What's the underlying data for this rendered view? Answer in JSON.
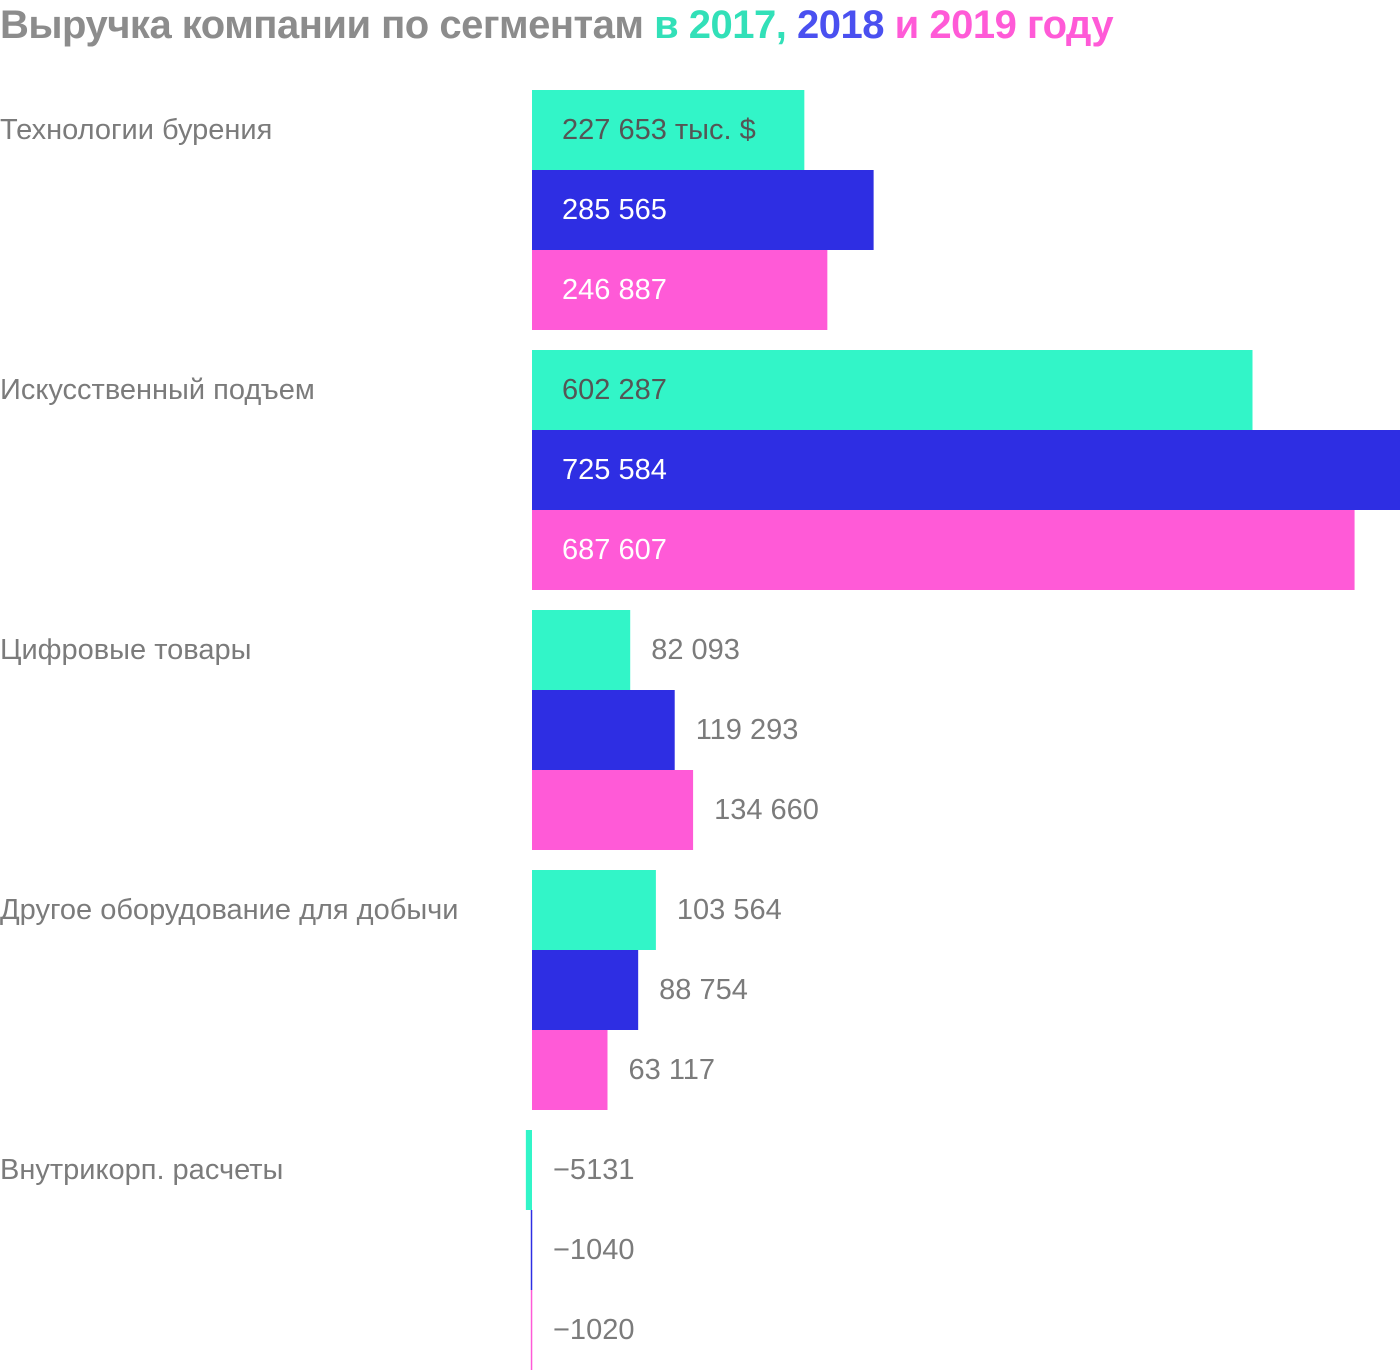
{
  "title": {
    "prefix": "Выручка компании по сегментам",
    "in": "в",
    "year1": "2017,",
    "year2": "2018",
    "and": "и",
    "year3": "2019",
    "suffix": "году"
  },
  "colors": {
    "title_gray": "#8c8c8c",
    "series_2017": "#32f5c8",
    "series_2018": "#2e2ee3",
    "series_2019": "#ff5ad7",
    "title_2018": "#4a50f0",
    "label_gray": "#7b7b7b",
    "label_dark": "#555555",
    "label_white": "#ffffff"
  },
  "chart_data": {
    "type": "bar",
    "orientation": "horizontal",
    "unit": "тыс. $",
    "categories": [
      "Технологии бурения",
      "Искусственный подъем",
      "Цифровые товары",
      "Другое оборудование для добычи",
      "Внутрикорп. расчеты"
    ],
    "series": [
      {
        "name": "2017",
        "values": [
          227653,
          602287,
          82093,
          103564,
          -5131
        ],
        "labels": [
          "227 653 тыс. $",
          "602 287",
          "82 093",
          "103 564",
          "−5131"
        ]
      },
      {
        "name": "2018",
        "values": [
          285565,
          725584,
          119293,
          88754,
          -1040
        ],
        "labels": [
          "285 565",
          "725 584",
          "119 293",
          "88 754",
          "−1040"
        ]
      },
      {
        "name": "2019",
        "values": [
          246887,
          687607,
          134660,
          63117,
          -1020
        ],
        "labels": [
          "246 887",
          "687 607",
          "134 660",
          "63 117",
          "−1020"
        ]
      }
    ],
    "xlim": [
      -5131,
      725584
    ],
    "grid": false,
    "legend": "title"
  }
}
